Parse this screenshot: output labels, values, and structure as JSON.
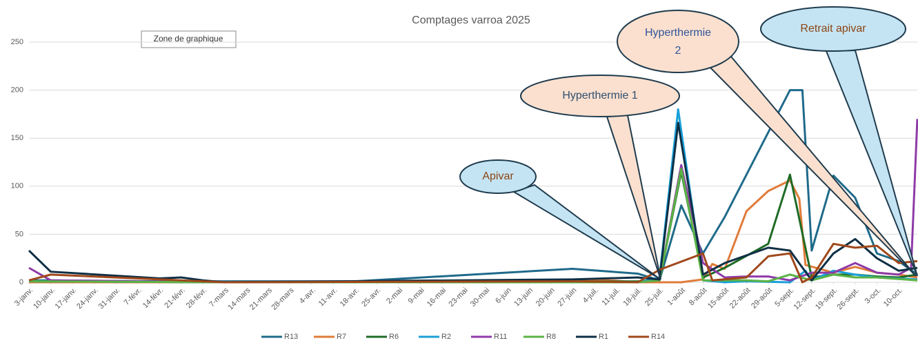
{
  "chart_data": {
    "type": "line",
    "title": "Comptages varroa 2025",
    "tooltip": "Zone de graphique",
    "xlim": [
      0,
      286
    ],
    "ylim": [
      0,
      250
    ],
    "yticks": [
      0,
      50,
      100,
      150,
      200,
      250
    ],
    "grid": true,
    "legend": "bottom",
    "xticks": [
      {
        "value": 0,
        "label": "3-janv."
      },
      {
        "value": 7,
        "label": "10-janv."
      },
      {
        "value": 14,
        "label": "17-janv."
      },
      {
        "value": 21,
        "label": "24-janv."
      },
      {
        "value": 28,
        "label": "31-janv."
      },
      {
        "value": 35,
        "label": "7-févr."
      },
      {
        "value": 42,
        "label": "14-févr."
      },
      {
        "value": 49,
        "label": "21-févr."
      },
      {
        "value": 56,
        "label": "28-févr."
      },
      {
        "value": 63,
        "label": "7-mars"
      },
      {
        "value": 70,
        "label": "14-mars"
      },
      {
        "value": 77,
        "label": "21-mars"
      },
      {
        "value": 84,
        "label": "28-mars"
      },
      {
        "value": 91,
        "label": "4-avr."
      },
      {
        "value": 98,
        "label": "11-avr."
      },
      {
        "value": 105,
        "label": "18-avr."
      },
      {
        "value": 112,
        "label": "25-avr."
      },
      {
        "value": 119,
        "label": "2-mai"
      },
      {
        "value": 126,
        "label": "9-mai"
      },
      {
        "value": 133,
        "label": "16-mai"
      },
      {
        "value": 140,
        "label": "23-mai"
      },
      {
        "value": 147,
        "label": "30-mai"
      },
      {
        "value": 154,
        "label": "6-juin"
      },
      {
        "value": 161,
        "label": "13-juin"
      },
      {
        "value": 168,
        "label": "20-juin"
      },
      {
        "value": 175,
        "label": "27-juin"
      },
      {
        "value": 182,
        "label": "4-juil."
      },
      {
        "value": 189,
        "label": "11-juil."
      },
      {
        "value": 196,
        "label": "18-juil."
      },
      {
        "value": 203,
        "label": "25-juil."
      },
      {
        "value": 210,
        "label": "1-août"
      },
      {
        "value": 217,
        "label": "8-août"
      },
      {
        "value": 224,
        "label": "15-août"
      },
      {
        "value": 231,
        "label": "22-août"
      },
      {
        "value": 238,
        "label": "29-août"
      },
      {
        "value": 245,
        "label": "5-sept."
      },
      {
        "value": 252,
        "label": "12-sept."
      },
      {
        "value": 259,
        "label": "19-sept."
      },
      {
        "value": 266,
        "label": "26-sept."
      },
      {
        "value": 273,
        "label": "3-oct."
      },
      {
        "value": 280,
        "label": "10-oct."
      }
    ],
    "series": [
      {
        "name": "R13",
        "color": "#1f6a8a",
        "x": [
          0,
          7,
          42,
          56,
          105,
          175,
          196,
          203,
          210,
          217,
          224,
          245,
          249,
          252,
          259,
          266,
          273,
          280,
          286
        ],
        "values": [
          2,
          2,
          1,
          1,
          1,
          14,
          9,
          2,
          80,
          30,
          68,
          200,
          200,
          33,
          111,
          88,
          30,
          22,
          8
        ]
      },
      {
        "name": "R7",
        "color": "#e07b39",
        "x": [
          0,
          63,
          175,
          182,
          196,
          203,
          210,
          217,
          220,
          224,
          231,
          238,
          245,
          248,
          250,
          259,
          266,
          273,
          280,
          286
        ],
        "values": [
          0,
          0,
          0,
          3,
          0,
          0,
          0,
          3,
          19,
          14,
          74,
          95,
          106,
          87,
          18,
          10,
          16,
          10,
          8,
          5
        ]
      },
      {
        "name": "R6",
        "color": "#1e6b25",
        "x": [
          0,
          63,
          196,
          203,
          210,
          217,
          224,
          238,
          245,
          252,
          259,
          266,
          273,
          280,
          286
        ],
        "values": [
          1,
          0,
          1,
          2,
          115,
          5,
          15,
          40,
          112,
          5,
          8,
          8,
          6,
          5,
          8
        ]
      },
      {
        "name": "R2",
        "color": "#1aa0d8",
        "x": [
          0,
          63,
          196,
          203,
          209,
          217,
          224,
          231,
          245,
          250,
          252,
          259,
          266,
          273,
          286
        ],
        "values": [
          1,
          0,
          0,
          5,
          180,
          2,
          0,
          1,
          0,
          12,
          2,
          12,
          8,
          5,
          3
        ]
      },
      {
        "name": "R11",
        "color": "#8e3aa8",
        "x": [
          0,
          7,
          63,
          196,
          203,
          210,
          217,
          224,
          231,
          238,
          245,
          252,
          259,
          266,
          273,
          280,
          284,
          286
        ],
        "values": [
          15,
          2,
          0,
          0,
          2,
          122,
          20,
          5,
          6,
          6,
          2,
          10,
          10,
          20,
          10,
          8,
          15,
          170
        ]
      },
      {
        "name": "R8",
        "color": "#5cb346",
        "x": [
          0,
          63,
          196,
          203,
          210,
          217,
          224,
          231,
          238,
          245,
          252,
          259,
          266,
          273,
          286
        ],
        "values": [
          1,
          0,
          0,
          2,
          118,
          2,
          2,
          2,
          1,
          8,
          2,
          8,
          5,
          5,
          2
        ]
      },
      {
        "name": "R1",
        "color": "#0f2f45",
        "x": [
          0,
          7,
          42,
          49,
          56,
          63,
          175,
          196,
          203,
          209,
          217,
          224,
          238,
          245,
          252,
          259,
          266,
          273,
          280,
          286
        ],
        "values": [
          33,
          11,
          4,
          5,
          2,
          0,
          3,
          5,
          3,
          166,
          8,
          20,
          36,
          33,
          2,
          30,
          45,
          25,
          12,
          15
        ]
      },
      {
        "name": "R14",
        "color": "#a0481b",
        "x": [
          0,
          7,
          14,
          49,
          63,
          175,
          196,
          203,
          217,
          220,
          231,
          238,
          245,
          249,
          252,
          259,
          266,
          273,
          280,
          286
        ],
        "values": [
          2,
          8,
          7,
          2,
          0,
          1,
          0,
          13,
          30,
          2,
          5,
          27,
          30,
          0,
          5,
          40,
          36,
          38,
          20,
          22
        ]
      }
    ],
    "annotations": [
      "Apivar",
      "Hyperthermie 1",
      "Hyperthermie 2",
      "Retrait apivar"
    ]
  }
}
